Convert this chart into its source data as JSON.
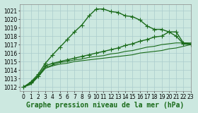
{
  "title": "Graphe pression niveau de la mer (hPa)",
  "bg_color": "#cce8e0",
  "grid_color": "#aacccc",
  "line_color": "#1a6b1a",
  "xlim": [
    -0.5,
    23
  ],
  "ylim": [
    1011.5,
    1021.8
  ],
  "yticks": [
    1012,
    1013,
    1014,
    1015,
    1016,
    1017,
    1018,
    1019,
    1020,
    1021
  ],
  "xticks": [
    0,
    1,
    2,
    3,
    4,
    5,
    6,
    7,
    8,
    9,
    10,
    11,
    12,
    13,
    14,
    15,
    16,
    17,
    18,
    19,
    20,
    21,
    22,
    23
  ],
  "series": [
    {
      "x": [
        0,
        1,
        2,
        3,
        4,
        5,
        6,
        7,
        8,
        9,
        10,
        11,
        12,
        13,
        14,
        15,
        16,
        17,
        18,
        19,
        20,
        21,
        22,
        23
      ],
      "y": [
        1012.0,
        1012.6,
        1013.5,
        1014.8,
        1015.8,
        1016.7,
        1017.6,
        1018.5,
        1019.3,
        1020.4,
        1021.2,
        1021.2,
        1020.9,
        1020.8,
        1020.4,
        1020.3,
        1019.9,
        1019.2,
        1018.8,
        1018.8,
        1018.5,
        1018.0,
        1017.1,
        1017.0
      ],
      "marker": "+",
      "lw": 1.0,
      "ms": 4
    },
    {
      "x": [
        0,
        1,
        2,
        3,
        4,
        5,
        6,
        7,
        8,
        9,
        10,
        11,
        12,
        13,
        14,
        15,
        16,
        17,
        18,
        19,
        20,
        21,
        22,
        23
      ],
      "y": [
        1012.0,
        1012.5,
        1013.3,
        1014.5,
        1014.8,
        1015.0,
        1015.2,
        1015.4,
        1015.6,
        1015.8,
        1016.0,
        1016.2,
        1016.4,
        1016.6,
        1016.9,
        1017.1,
        1017.4,
        1017.6,
        1017.9,
        1018.0,
        1018.5,
        1018.5,
        1017.2,
        1017.1
      ],
      "marker": "+",
      "lw": 1.0,
      "ms": 4
    },
    {
      "x": [
        0,
        1,
        2,
        3,
        4,
        5,
        6,
        7,
        8,
        9,
        10,
        11,
        12,
        13,
        14,
        15,
        16,
        17,
        18,
        19,
        20,
        21,
        22,
        23
      ],
      "y": [
        1012.0,
        1012.3,
        1013.2,
        1014.2,
        1014.5,
        1014.7,
        1014.8,
        1015.0,
        1015.1,
        1015.2,
        1015.3,
        1015.4,
        1015.5,
        1015.6,
        1015.7,
        1015.8,
        1016.0,
        1016.1,
        1016.2,
        1016.3,
        1016.5,
        1016.6,
        1016.8,
        1017.0
      ],
      "marker": "",
      "lw": 0.8,
      "ms": 0
    },
    {
      "x": [
        0,
        1,
        2,
        3,
        4,
        5,
        6,
        7,
        8,
        9,
        10,
        11,
        12,
        13,
        14,
        15,
        16,
        17,
        18,
        19,
        20,
        21,
        22,
        23
      ],
      "y": [
        1012.0,
        1012.4,
        1013.3,
        1014.3,
        1014.6,
        1014.9,
        1015.0,
        1015.2,
        1015.3,
        1015.5,
        1015.6,
        1015.7,
        1015.9,
        1016.0,
        1016.2,
        1016.3,
        1016.5,
        1016.7,
        1016.8,
        1017.0,
        1017.1,
        1017.2,
        1017.2,
        1017.2
      ],
      "marker": "",
      "lw": 0.8,
      "ms": 0
    }
  ],
  "title_fontsize": 7,
  "tick_fontsize": 5.5
}
